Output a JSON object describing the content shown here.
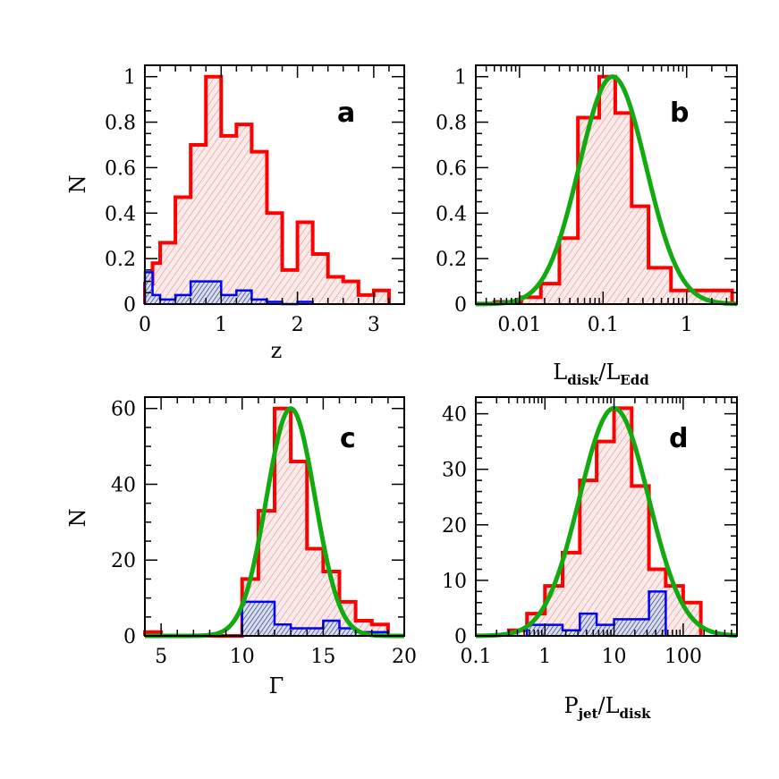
{
  "colors": {
    "red": "#ff0000",
    "blue": "#0000ff",
    "green": "#11aa11",
    "frame": "#000000"
  },
  "chart_data": [
    {
      "type": "histogram",
      "panel": "a",
      "xlabel": "z",
      "ylabel": "N",
      "xscale": "linear",
      "xlim": [
        0,
        3.4
      ],
      "ylim": [
        0,
        1.05
      ],
      "xticks": [
        0,
        1,
        2,
        3
      ],
      "xtick_labels": [
        "0",
        "1",
        "2",
        "3"
      ],
      "yticks": [
        0,
        0.2,
        0.4,
        0.6,
        0.8,
        1
      ],
      "ytick_labels": [
        "0",
        "0.2",
        "0.4",
        "0.6",
        "0.8",
        "1"
      ],
      "series": [
        {
          "color": "red",
          "edges": [
            0,
            0.1,
            0.2,
            0.4,
            0.6,
            0.8,
            1.0,
            1.2,
            1.4,
            1.6,
            1.8,
            2.0,
            2.2,
            2.4,
            2.6,
            2.8,
            3.0,
            3.2
          ],
          "values": [
            0.09,
            0.18,
            0.27,
            0.47,
            0.7,
            1.0,
            0.74,
            0.79,
            0.67,
            0.4,
            0.15,
            0.36,
            0.22,
            0.12,
            0.1,
            0.04,
            0.06
          ]
        },
        {
          "color": "blue",
          "edges": [
            0,
            0.1,
            0.2,
            0.4,
            0.6,
            0.8,
            1.0,
            1.2,
            1.4,
            1.6,
            1.8,
            2.0,
            2.2
          ],
          "values": [
            0.14,
            0.04,
            0.02,
            0.04,
            0.1,
            0.1,
            0.04,
            0.06,
            0.02,
            0.01,
            0.0,
            0.01
          ]
        }
      ]
    },
    {
      "type": "histogram",
      "panel": "b",
      "xlabel": "L",
      "xlabel_sub": [
        "disk",
        "Edd"
      ],
      "xscale": "log",
      "xlim": [
        0.003,
        4
      ],
      "ylim": [
        0,
        1.05
      ],
      "xticks": [
        0.01,
        0.1,
        1
      ],
      "xtick_labels": [
        "0.01",
        "0.1",
        "1"
      ],
      "yticks": [
        0,
        0.2,
        0.4,
        0.6,
        0.8,
        1
      ],
      "ytick_labels": [
        "0",
        "0.2",
        "0.4",
        "0.6",
        "0.8",
        "1"
      ],
      "series": [
        {
          "color": "red",
          "edges": [
            0.005,
            0.0105,
            0.018,
            0.03,
            0.05,
            0.09,
            0.14,
            0.22,
            0.35,
            0.65,
            1.0,
            3.5
          ],
          "values": [
            0.01,
            0.03,
            0.09,
            0.29,
            0.82,
            1.0,
            0.84,
            0.43,
            0.16,
            0.06,
            0.06
          ]
        },
        {
          "color": "green",
          "curve": "gaussian",
          "center": 0.13,
          "sigma_dex": 0.4,
          "amplitude": 1.0
        }
      ]
    },
    {
      "type": "histogram",
      "panel": "c",
      "xlabel": "Γ",
      "ylabel": "N",
      "xscale": "linear",
      "xlim": [
        4,
        20
      ],
      "ylim": [
        0,
        63
      ],
      "xticks": [
        5,
        10,
        15,
        20
      ],
      "xtick_labels": [
        "5",
        "10",
        "15",
        "20"
      ],
      "yticks": [
        0,
        20,
        40,
        60
      ],
      "ytick_labels": [
        "0",
        "20",
        "40",
        "60"
      ],
      "series": [
        {
          "color": "red",
          "edges": [
            4,
            5,
            6,
            7,
            8,
            9,
            10,
            11,
            12,
            13,
            14,
            15,
            16,
            17,
            18,
            19
          ],
          "values": [
            1,
            0,
            0,
            0,
            0,
            0,
            15,
            33,
            60,
            46,
            23,
            17,
            9,
            4,
            3
          ]
        },
        {
          "color": "blue",
          "edges": [
            10,
            11,
            12,
            13,
            14,
            15,
            16,
            17,
            18,
            19
          ],
          "values": [
            9,
            9,
            3,
            2,
            2,
            4,
            2,
            1,
            1
          ]
        },
        {
          "color": "green",
          "curve": "gaussian",
          "center": 13,
          "sigma": 1.5,
          "amplitude": 60
        }
      ]
    },
    {
      "type": "histogram",
      "panel": "d",
      "xlabel": "P",
      "xlabel_sub": [
        "jet",
        "disk"
      ],
      "xscale": "log",
      "xlim": [
        0.1,
        600
      ],
      "ylim": [
        0,
        43
      ],
      "xticks": [
        0.1,
        1,
        10,
        100
      ],
      "xtick_labels": [
        "0.1",
        "1",
        "10",
        "100"
      ],
      "yticks": [
        0,
        10,
        20,
        30,
        40
      ],
      "ytick_labels": [
        "0",
        "10",
        "20",
        "30",
        "40"
      ],
      "series": [
        {
          "color": "red",
          "edges": [
            0.3,
            0.55,
            1.0,
            1.8,
            3.2,
            5.6,
            10,
            18,
            32,
            56,
            100,
            180
          ],
          "values": [
            1,
            4,
            9,
            15,
            28,
            35,
            41,
            27,
            12,
            9,
            6
          ]
        },
        {
          "color": "blue",
          "edges": [
            0.55,
            1.0,
            1.8,
            3.2,
            5.6,
            10,
            18,
            32,
            56
          ],
          "values": [
            2,
            2,
            1,
            4,
            2,
            3,
            3,
            8
          ]
        },
        {
          "color": "green",
          "curve": "gaussian",
          "center": 10,
          "sigma_dex": 0.5,
          "amplitude": 41
        }
      ]
    }
  ]
}
